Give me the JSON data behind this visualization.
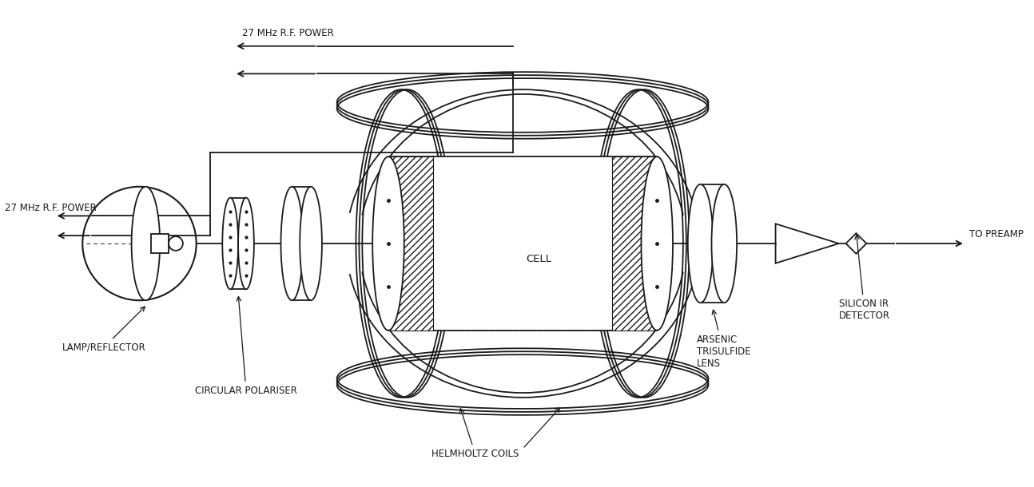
{
  "bg_color": "#ffffff",
  "line_color": "#1a1a1a",
  "figsize": [
    12.94,
    6.1
  ],
  "dpi": 100,
  "labels": {
    "lamp_reflector": "LAMP/REFLECTOR",
    "circular_polariser": "CIRCULAR POLARISER",
    "cell": "CELL",
    "helmholtz_coils": "HELMHOLTZ COILS",
    "arsenic_lens": "ARSENIC\nTRISULFIDE\nLENS",
    "silicon_ir": "SILICON IR\nDETECTOR",
    "to_preamp": "TO PREAMP",
    "rf_power_top": "27 MHz R.F. POWER",
    "rf_power_left": "27 MHz R.F. POWER"
  },
  "font_size": 8.5
}
